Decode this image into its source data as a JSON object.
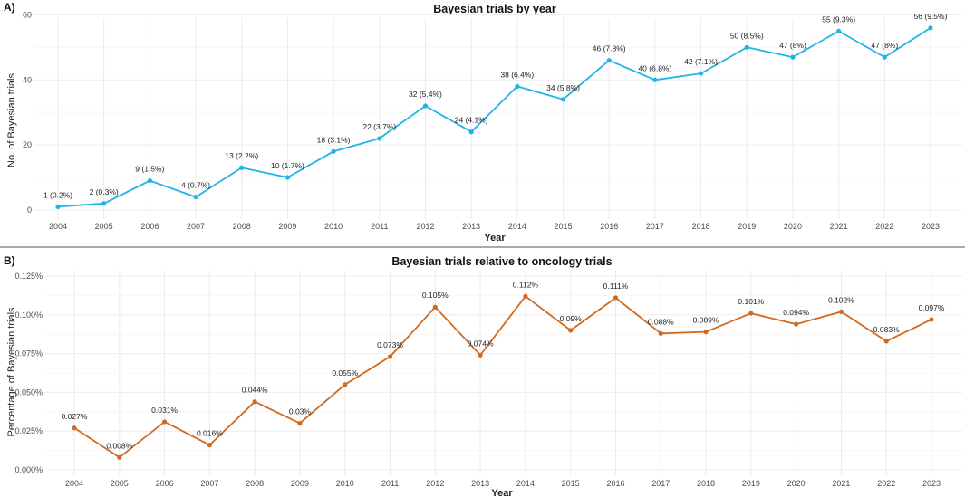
{
  "chart_data": [
    {
      "type": "line",
      "panel_label": "A)",
      "title": "Bayesian trials by year",
      "xlabel": "Year",
      "ylabel": "No. of Bayesian trials",
      "color": "#1fb5e6",
      "x": [
        "2004",
        "2005",
        "2006",
        "2007",
        "2008",
        "2009",
        "2010",
        "2011",
        "2012",
        "2013",
        "2014",
        "2015",
        "2016",
        "2017",
        "2018",
        "2019",
        "2020",
        "2021",
        "2022",
        "2023"
      ],
      "values": [
        1,
        2,
        9,
        4,
        13,
        10,
        18,
        22,
        32,
        24,
        38,
        34,
        46,
        40,
        42,
        50,
        47,
        55,
        47,
        56
      ],
      "point_labels": [
        "1 (0.2%)",
        "2 (0.3%)",
        "9 (1.5%)",
        "4 (0.7%)",
        "13 (2.2%)",
        "10 (1.7%)",
        "18 (3.1%)",
        "22 (3.7%)",
        "32 (5.4%)",
        "24 (4.1%)",
        "38 (6.4%)",
        "34 (5.8%)",
        "46 (7.8%)",
        "40 (6.8%)",
        "42 (7.1%)",
        "50 (8.5%)",
        "47 (8%)",
        "55 (9.3%)",
        "47 (8%)",
        "56 (9.5%)"
      ],
      "ylim": [
        -2.8,
        59
      ],
      "yticks": [
        0,
        20,
        40,
        60
      ],
      "ytick_labels": [
        "0",
        "20",
        "40",
        "60"
      ],
      "grid": true
    },
    {
      "type": "line",
      "panel_label": "B)",
      "title": "Bayesian trials relative to oncology trials",
      "xlabel": "Year",
      "ylabel": "Percentage of Bayesian trials",
      "color": "#d2691e",
      "x": [
        "2004",
        "2005",
        "2006",
        "2007",
        "2008",
        "2009",
        "2010",
        "2011",
        "2012",
        "2013",
        "2014",
        "2015",
        "2016",
        "2017",
        "2018",
        "2019",
        "2020",
        "2021",
        "2022",
        "2023"
      ],
      "values": [
        0.027,
        0.008,
        0.031,
        0.016,
        0.044,
        0.03,
        0.055,
        0.073,
        0.105,
        0.074,
        0.112,
        0.09,
        0.111,
        0.088,
        0.089,
        0.101,
        0.094,
        0.102,
        0.083,
        0.097
      ],
      "point_labels": [
        "0.027%",
        "0.008%",
        "0.031%",
        "0.016%",
        "0.044%",
        "0.03%",
        "0.055%",
        "0.073%",
        "0.105%",
        "0.074%",
        "0.112%",
        "0.09%",
        "0.111%",
        "0.088%",
        "0.089%",
        "0.101%",
        "0.094%",
        "0.102%",
        "0.083%",
        "0.097%"
      ],
      "ylim": [
        -0.0035,
        0.1285
      ],
      "yticks": [
        0,
        0.025,
        0.05,
        0.075,
        0.1,
        0.125
      ],
      "ytick_labels": [
        "0.000%",
        "0.025%",
        "0.050%",
        "0.075%",
        "0.100%",
        "0.125%"
      ],
      "grid": true
    }
  ]
}
